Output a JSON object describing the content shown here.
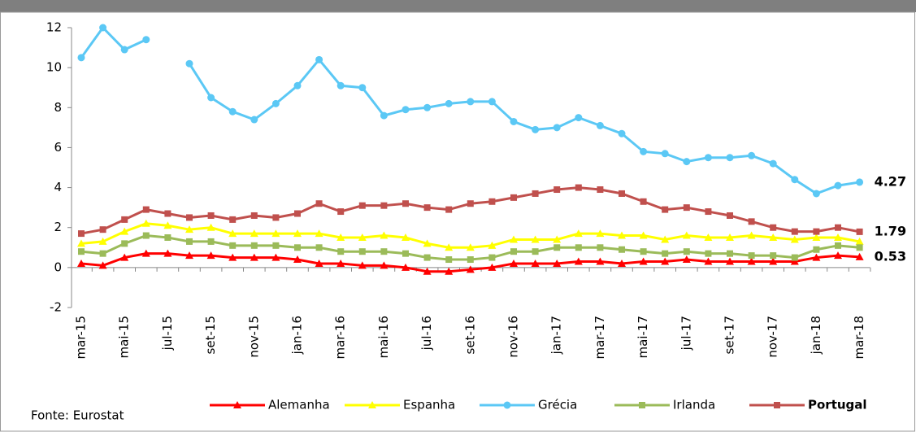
{
  "chart_data": {
    "type": "line",
    "categories": [
      "mar-15",
      null,
      "mai-15",
      null,
      "jul-15",
      null,
      "set-15",
      null,
      "nov-15",
      null,
      "jan-16",
      null,
      "mar-16",
      null,
      "mai-16",
      null,
      "jul-16",
      null,
      "set-16",
      null,
      "nov-16",
      null,
      "jan-17",
      null,
      "mar-17",
      null,
      "mai-17",
      null,
      "jul-17",
      null,
      "set-17",
      null,
      "nov-17",
      null,
      "jan-18",
      null,
      "mar-18"
    ],
    "ylim": [
      -2,
      12
    ],
    "yticks": [
      -2,
      0,
      2,
      4,
      6,
      8,
      10,
      12
    ],
    "series": [
      {
        "name": "Alemanha",
        "color": "#ff0000",
        "marker": "triangle",
        "values": [
          0.2,
          0.1,
          0.5,
          0.7,
          0.7,
          0.6,
          0.6,
          0.5,
          0.5,
          0.5,
          0.4,
          0.2,
          0.2,
          0.1,
          0.1,
          0.0,
          -0.2,
          -0.2,
          -0.1,
          0.0,
          0.2,
          0.2,
          0.2,
          0.3,
          0.3,
          0.2,
          0.3,
          0.3,
          0.4,
          0.3,
          0.3,
          0.3,
          0.3,
          0.3,
          0.5,
          0.6,
          0.53
        ]
      },
      {
        "name": "Espanha",
        "color": "#ffff00",
        "marker": "triangle",
        "values": [
          1.2,
          1.3,
          1.8,
          2.2,
          2.1,
          1.9,
          2.0,
          1.7,
          1.7,
          1.7,
          1.7,
          1.7,
          1.5,
          1.5,
          1.6,
          1.5,
          1.2,
          1.0,
          1.0,
          1.1,
          1.4,
          1.4,
          1.4,
          1.7,
          1.7,
          1.6,
          1.6,
          1.4,
          1.6,
          1.5,
          1.5,
          1.6,
          1.5,
          1.4,
          1.5,
          1.5,
          1.3
        ]
      },
      {
        "name": "Grécia",
        "color": "#5bc8f5",
        "marker": "circle",
        "values": [
          10.5,
          12.0,
          10.9,
          11.4,
          null,
          10.2,
          8.5,
          7.8,
          7.4,
          8.2,
          9.1,
          10.4,
          9.1,
          9.0,
          7.6,
          7.9,
          8.0,
          8.2,
          8.3,
          8.3,
          7.3,
          6.9,
          7.0,
          7.5,
          7.1,
          6.7,
          5.8,
          5.7,
          5.3,
          5.5,
          5.5,
          5.6,
          5.2,
          4.4,
          3.7,
          4.1,
          4.27
        ]
      },
      {
        "name": "Irlanda",
        "color": "#9bbb59",
        "marker": "square",
        "values": [
          0.8,
          0.7,
          1.2,
          1.6,
          1.5,
          1.3,
          1.3,
          1.1,
          1.1,
          1.1,
          1.0,
          1.0,
          0.8,
          0.8,
          0.8,
          0.7,
          0.5,
          0.4,
          0.4,
          0.5,
          0.8,
          0.8,
          1.0,
          1.0,
          1.0,
          0.9,
          0.8,
          0.7,
          0.8,
          0.7,
          0.7,
          0.6,
          0.6,
          0.5,
          0.9,
          1.1,
          1.0
        ]
      },
      {
        "name": "Portugal",
        "color": "#c0504d",
        "marker": "square",
        "values": [
          1.7,
          1.9,
          2.4,
          2.9,
          2.7,
          2.5,
          2.6,
          2.4,
          2.6,
          2.5,
          2.7,
          3.2,
          2.8,
          3.1,
          3.1,
          3.2,
          3.0,
          2.9,
          3.2,
          3.3,
          3.5,
          3.7,
          3.9,
          4.0,
          3.9,
          3.7,
          3.3,
          2.9,
          3.0,
          2.8,
          2.6,
          2.3,
          2.0,
          1.8,
          1.8,
          2.0,
          1.79
        ]
      }
    ],
    "end_labels": [
      {
        "series": 2,
        "color": "#33b5e5"
      },
      {
        "series": 4,
        "color": "#c00000"
      },
      {
        "series": 0,
        "color": "#ff0000"
      }
    ],
    "source": "Fonte:  Eurostat"
  }
}
